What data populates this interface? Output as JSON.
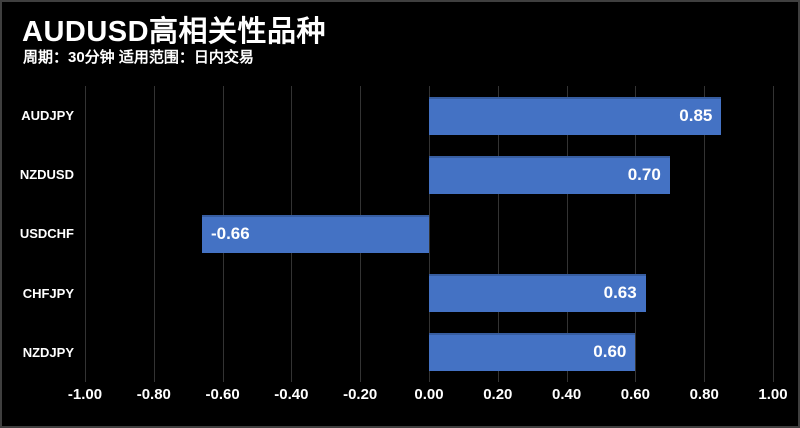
{
  "header": {
    "title": "AUDUSD高相关性品种",
    "subtitle": "周期：30分钟 适用范围：日内交易"
  },
  "chart_data": {
    "type": "bar",
    "orientation": "horizontal",
    "title": "AUDUSD高相关性品种",
    "subtitle": "周期：30分钟 适用范围：日内交易",
    "categories": [
      "AUDJPY",
      "NZDUSD",
      "USDCHF",
      "CHFJPY",
      "NZDJPY"
    ],
    "values": [
      0.85,
      0.7,
      -0.66,
      0.63,
      0.6
    ],
    "value_labels": [
      "0.85",
      "0.70",
      "-0.66",
      "0.63",
      "0.60"
    ],
    "x_ticks": [
      "-1.00",
      "-0.80",
      "-0.60",
      "-0.40",
      "-0.20",
      "0.00",
      "0.20",
      "0.40",
      "0.60",
      "0.80",
      "1.00"
    ],
    "xlim": [
      -1.0,
      1.0
    ],
    "grid": true,
    "legend": false,
    "colors": {
      "background": "#000000",
      "bar": "#4472C4",
      "gridline": "#333333",
      "text": "#FFFFFF",
      "frame_border": "#3F3F3F"
    }
  }
}
